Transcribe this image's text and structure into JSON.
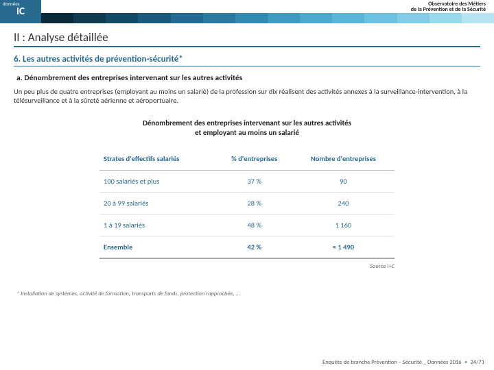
{
  "header": {
    "org_line1": "Observatoire des Métiers",
    "org_line2": "de la Prévention et de la Sécurité",
    "logo_small": "données",
    "logo_main": "IC",
    "logo_bg": "#276a8e",
    "stripe_colors": [
      "#0a2a3a",
      "#0f3a50",
      "#154a66",
      "#1b5a7c",
      "#226a8f",
      "#2a7aa0",
      "#348ab0",
      "#3e9abf",
      "#4aa9cd",
      "#5ab6d7",
      "#6cc1de",
      "#82cde5",
      "#9ad9ec",
      "#b6e4f2"
    ]
  },
  "section": {
    "title": "II : Analyse détaillée",
    "subtitle": "6. Les autres activités de prévention-sécurité*",
    "subsub": "a. Dénombrement des entreprises intervenant sur les autres activités",
    "paragraph": "Un peu plus de quatre entreprises (employant au moins un salarié) de la profession sur dix réalisent des activités annexes à la surveillance-intervention, à la télésurveillance et à la sûreté aérienne et aéroportuaire."
  },
  "table": {
    "title_l1": "Dénombrement des entreprises intervenant sur les autres activités",
    "title_l2": "et employant au moins un salarié",
    "columns": [
      "Strates d'effectifs salariés",
      "% d'entreprises",
      "Nombre d'entreprises"
    ],
    "rows": [
      [
        "100 salariés et plus",
        "37 %",
        "90"
      ],
      [
        "20 à 99 salariés",
        "28 %",
        "240"
      ],
      [
        "1 à 19 salariés",
        "48 %",
        "1 160"
      ]
    ],
    "ensemble": [
      "Ensemble",
      "42 %",
      "≈ 1 490"
    ],
    "source": "Source I+C",
    "header_color": "#276a8e",
    "cell_color": "#276a8e"
  },
  "footnote": "* Installation de systèmes, activité de formation, transports de fonds, protection rapprochée, …",
  "footer": {
    "text": "Enquête de branche Prévention – Sécurité _ Données 2016",
    "page": "24/71"
  }
}
